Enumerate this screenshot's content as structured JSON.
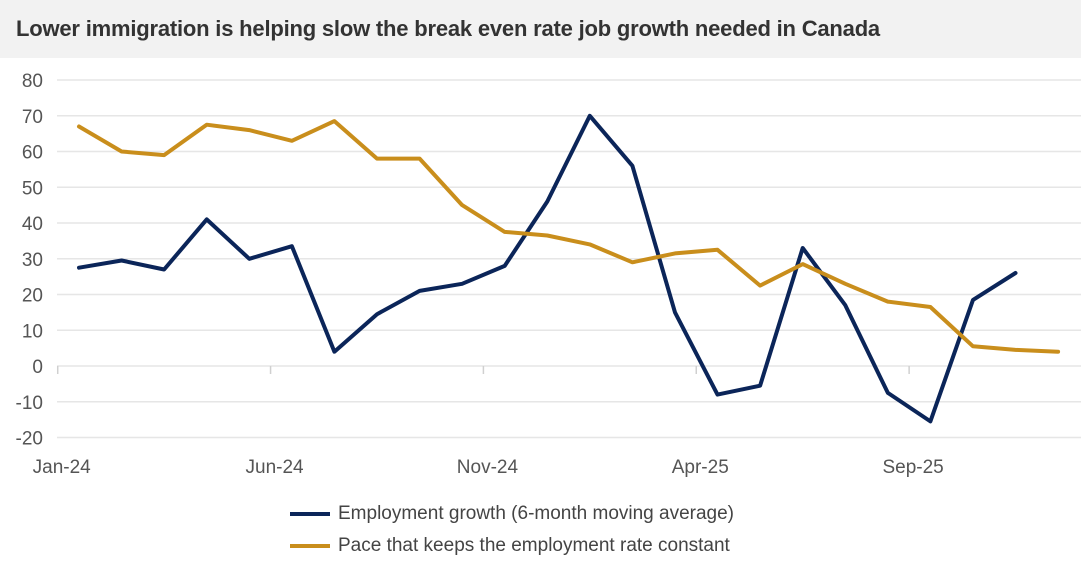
{
  "chart_data": {
    "type": "line",
    "title": "Lower immigration is helping slow the break even rate job growth needed in Canada",
    "xlabel": "",
    "ylabel": "",
    "ylim": [
      -20,
      80
    ],
    "yticks": [
      "80",
      "70",
      "60",
      "50",
      "40",
      "30",
      "20",
      "10",
      "0",
      "-10",
      "-20"
    ],
    "x": [
      "Jan-24",
      "Feb-24",
      "Mar-24",
      "Apr-24",
      "May-24",
      "Jun-24",
      "Jul-24",
      "Aug-24",
      "Sep-24",
      "Oct-24",
      "Nov-24",
      "Dec-24",
      "Jan-25",
      "Feb-25",
      "Mar-25",
      "Apr-25",
      "May-25",
      "Jun-25",
      "Jul-25",
      "Aug-25",
      "Sep-25",
      "Oct-25",
      "Nov-25",
      "Dec-25"
    ],
    "xtick_labels": [
      "Jan-24",
      "Jun-24",
      "Nov-24",
      "Apr-25",
      "Sep-25"
    ],
    "grid": true,
    "legend_placement": "bottom",
    "series": [
      {
        "name": "Employment growth (6-month moving average)",
        "color": "#0b2559",
        "values": [
          27.5,
          29.5,
          27,
          41,
          30,
          33.5,
          4,
          14.5,
          21,
          23,
          28,
          46,
          70,
          56,
          15,
          -8,
          -5.5,
          33,
          17,
          -7.5,
          -15.5,
          18.5,
          26,
          null
        ]
      },
      {
        "name": "Pace that keeps the employment rate constant",
        "color": "#c98e1c",
        "values": [
          67,
          60,
          59,
          67.5,
          66,
          63,
          68.5,
          58,
          58,
          45,
          37.5,
          36.5,
          34,
          29,
          31.5,
          32.5,
          22.5,
          28.5,
          23,
          18,
          16.5,
          5.5,
          4.5,
          4
        ]
      }
    ]
  }
}
